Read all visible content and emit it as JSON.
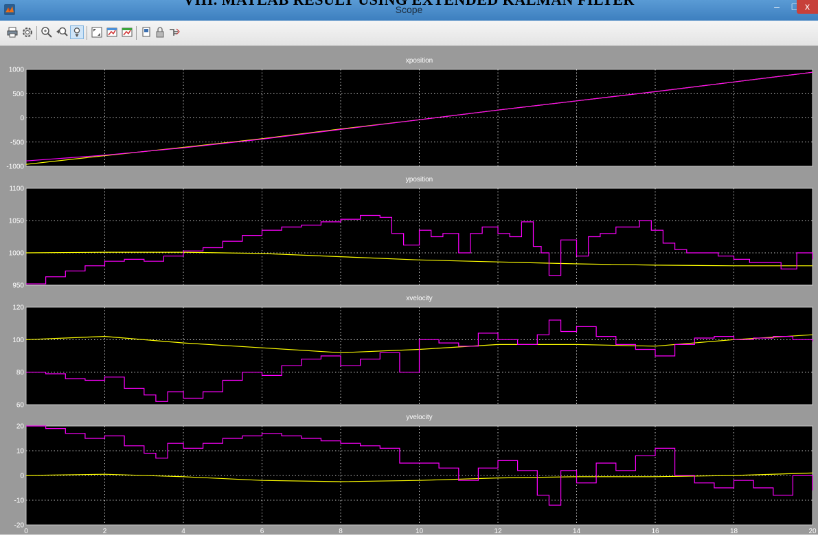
{
  "document": {
    "heading": "VIII.      MATLAB RESULT USING EXTENDED KALMAN FILTER"
  },
  "window": {
    "title": "Scope",
    "controls": {
      "minimize": "–",
      "maximize": "□",
      "close": "x"
    }
  },
  "toolbar": {
    "buttons": [
      {
        "name": "print-icon"
      },
      {
        "name": "parameters-icon"
      },
      {
        "name": "zoom-in-icon"
      },
      {
        "name": "zoom-x-icon"
      },
      {
        "name": "zoom-y-icon",
        "active": true
      },
      {
        "name": "autoscale-icon"
      },
      {
        "name": "save-axes-settings-icon"
      },
      {
        "name": "restore-axes-settings-icon"
      },
      {
        "name": "floating-scope-icon"
      },
      {
        "name": "lock-axes-icon"
      },
      {
        "name": "signal-selector-icon"
      }
    ]
  },
  "colors": {
    "background": "#9a9a9a",
    "axes": "#000000",
    "grid": "#ffffff",
    "estimate": "#ff00ff",
    "truth": "#ffff00"
  },
  "chart_data": [
    {
      "type": "line",
      "title": "xposition",
      "xlim": [
        0,
        20
      ],
      "ylim": [
        -1000,
        1000
      ],
      "yticks": [
        "1000",
        "500",
        "0",
        "-500",
        "-1000"
      ],
      "xticks": [
        "0",
        "2",
        "4",
        "6",
        "8",
        "10",
        "12",
        "14",
        "16",
        "18",
        "20"
      ],
      "grid": true,
      "series": [
        {
          "color": "#ff00ff",
          "x": [
            0,
            2,
            4,
            6,
            8,
            10,
            12,
            14,
            16,
            18,
            20
          ],
          "y": [
            -890,
            -770,
            -620,
            -440,
            -240,
            -40,
            160,
            350,
            540,
            740,
            940
          ]
        },
        {
          "color": "#ffff00",
          "x": [
            0,
            2,
            4,
            6,
            8,
            10,
            12,
            14,
            16,
            18,
            20
          ],
          "y": [
            -960,
            -780,
            -610,
            -430,
            -230,
            -40,
            160,
            350,
            540,
            740,
            940
          ]
        }
      ]
    },
    {
      "type": "line",
      "title": "yposition",
      "xlim": [
        0,
        20
      ],
      "ylim": [
        950,
        1100
      ],
      "yticks": [
        "1100",
        "1050",
        "1000",
        "950"
      ],
      "xticks": [
        "0",
        "2",
        "4",
        "6",
        "8",
        "10",
        "12",
        "14",
        "16",
        "18",
        "20"
      ],
      "grid": true,
      "series": [
        {
          "color": "#ff00ff",
          "step": true,
          "x": [
            0,
            0.5,
            1,
            1.5,
            2,
            2.5,
            3,
            3.5,
            4,
            4.5,
            5,
            5.5,
            6,
            6.5,
            7,
            7.5,
            8,
            8.5,
            9,
            9.3,
            9.6,
            10,
            10.3,
            10.6,
            11,
            11.3,
            11.6,
            12,
            12.3,
            12.6,
            12.9,
            13.1,
            13.3,
            13.6,
            14,
            14.3,
            14.6,
            15,
            15.3,
            15.6,
            15.9,
            16.2,
            16.5,
            16.8,
            17.2,
            17.6,
            18,
            18.4,
            18.8,
            19.2,
            19.6,
            20
          ],
          "y": [
            952,
            963,
            972,
            980,
            987,
            990,
            987,
            995,
            1003,
            1008,
            1018,
            1027,
            1035,
            1040,
            1043,
            1048,
            1052,
            1058,
            1055,
            1030,
            1012,
            1035,
            1025,
            1030,
            1000,
            1030,
            1040,
            1030,
            1025,
            1048,
            1010,
            1000,
            965,
            1020,
            995,
            1025,
            1030,
            1040,
            1040,
            1050,
            1035,
            1015,
            1005,
            1000,
            1000,
            995,
            990,
            985,
            985,
            975,
            1000,
            990
          ]
        },
        {
          "color": "#ffff00",
          "x": [
            0,
            2,
            4,
            6,
            8,
            10,
            12,
            14,
            16,
            18,
            20
          ],
          "y": [
            1000,
            1001,
            1001,
            999,
            994,
            989,
            986,
            983,
            981,
            980,
            980
          ]
        }
      ]
    },
    {
      "type": "line",
      "title": "xvelocity",
      "xlim": [
        0,
        20
      ],
      "ylim": [
        60,
        120
      ],
      "yticks": [
        "120",
        "100",
        "80",
        "60"
      ],
      "xticks": [
        "0",
        "2",
        "4",
        "6",
        "8",
        "10",
        "12",
        "14",
        "16",
        "18",
        "20"
      ],
      "grid": true,
      "series": [
        {
          "color": "#ff00ff",
          "step": true,
          "x": [
            0,
            0.5,
            1,
            1.5,
            2,
            2.5,
            3,
            3.3,
            3.6,
            4,
            4.5,
            5,
            5.5,
            6,
            6.5,
            7,
            7.5,
            8,
            8.5,
            9,
            9.5,
            10,
            10.5,
            11,
            11.5,
            12,
            12.5,
            13,
            13.3,
            13.6,
            14,
            14.5,
            15,
            15.5,
            16,
            16.5,
            17,
            17.5,
            18,
            18.5,
            19,
            19.5,
            20
          ],
          "y": [
            80,
            79,
            76,
            75,
            77,
            70,
            66,
            62,
            68,
            64,
            68,
            75,
            80,
            78,
            84,
            88,
            90,
            84,
            88,
            92,
            80,
            100,
            98,
            96,
            104,
            100,
            97,
            103,
            112,
            105,
            108,
            102,
            97,
            94,
            90,
            97,
            101,
            102,
            100,
            101,
            102,
            100,
            99
          ]
        },
        {
          "color": "#ffff00",
          "x": [
            0,
            2,
            4,
            6,
            8,
            10,
            12,
            14,
            16,
            18,
            20
          ],
          "y": [
            100,
            102,
            98,
            95,
            92,
            94,
            97,
            97,
            96,
            100,
            103
          ]
        }
      ]
    },
    {
      "type": "line",
      "title": "yvelocity",
      "xlim": [
        0,
        20
      ],
      "ylim": [
        -20,
        20
      ],
      "yticks": [
        "20",
        "10",
        "0",
        "-10",
        "-20"
      ],
      "xticks": [
        "0",
        "2",
        "4",
        "6",
        "8",
        "10",
        "12",
        "14",
        "16",
        "18",
        "20"
      ],
      "grid": true,
      "series": [
        {
          "color": "#ff00ff",
          "step": true,
          "x": [
            0,
            0.5,
            1,
            1.5,
            2,
            2.5,
            3,
            3.3,
            3.6,
            4,
            4.5,
            5,
            5.5,
            6,
            6.5,
            7,
            7.5,
            8,
            8.5,
            9,
            9.5,
            10,
            10.5,
            11,
            11.5,
            12,
            12.5,
            13,
            13.3,
            13.6,
            14,
            14.5,
            15,
            15.5,
            16,
            16.5,
            17,
            17.5,
            18,
            18.5,
            19,
            19.5,
            20
          ],
          "y": [
            20,
            19,
            17,
            15,
            16,
            12,
            9,
            7,
            13,
            11,
            13,
            15,
            16,
            17,
            16,
            15,
            14,
            13,
            12,
            11,
            5,
            5,
            3,
            -2,
            3,
            6,
            2,
            -8,
            -12,
            2,
            -3,
            5,
            2,
            8,
            11,
            0,
            -3,
            -5,
            -2,
            -5,
            -8,
            0,
            -6
          ]
        },
        {
          "color": "#ffff00",
          "x": [
            0,
            2,
            4,
            6,
            8,
            10,
            12,
            14,
            16,
            18,
            20
          ],
          "y": [
            0,
            0.5,
            -0.5,
            -2,
            -2.5,
            -2,
            -1,
            -0.5,
            -0.5,
            0,
            1
          ]
        }
      ]
    }
  ]
}
